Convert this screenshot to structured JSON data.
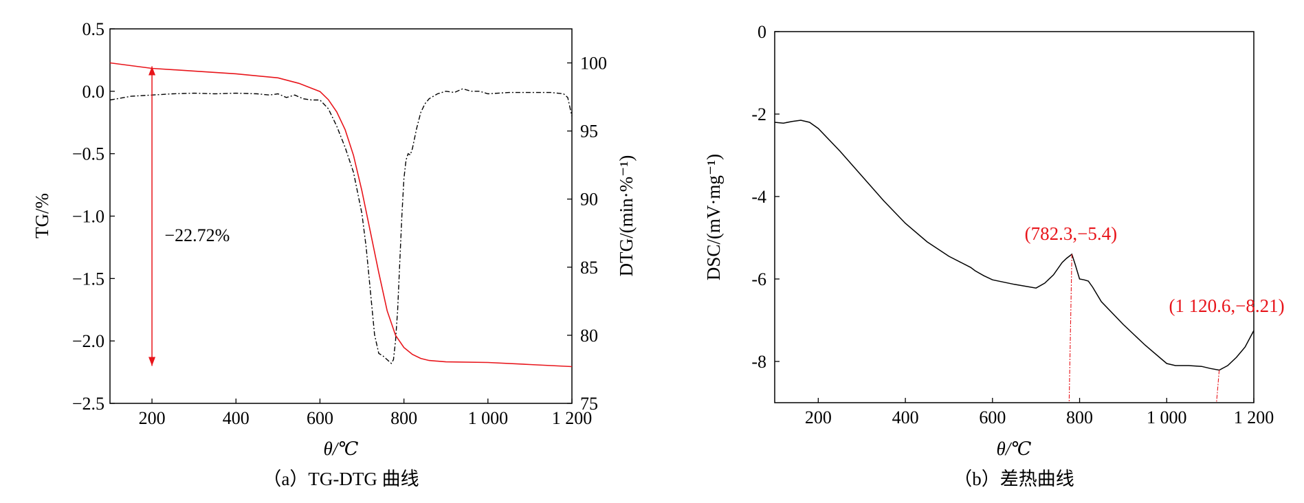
{
  "chart_data": [
    {
      "type": "line",
      "caption": "（a）TG-DTG 曲线",
      "xlabel": "θ/℃",
      "ylabel": "TG/%",
      "y2label": "DTG/(min·%⁻¹)",
      "xlim": [
        100,
        1200
      ],
      "ylim": [
        -2.5,
        0.5
      ],
      "y2lim": [
        75,
        102.5
      ],
      "xticks": [
        200,
        400,
        600,
        800,
        1000,
        1200
      ],
      "xtick_labels": [
        "200",
        "400",
        "600",
        "800",
        "1 000",
        "1 200"
      ],
      "yticks": [
        0.5,
        0.0,
        -0.5,
        -1.0,
        -1.5,
        -2.0,
        -2.5
      ],
      "ytick_labels": [
        "0.5",
        "0.0",
        "−0.5",
        "−1.0",
        "−1.5",
        "−2.0",
        "−2.5"
      ],
      "y2ticks": [
        75,
        80,
        85,
        90,
        95,
        100
      ],
      "y2tick_labels": [
        "75",
        "80",
        "85",
        "90",
        "95",
        "100"
      ],
      "annotation": {
        "text": "−22.72%",
        "arrow_x": 200,
        "arrow_y_top": 0.2,
        "arrow_y_bottom": -2.2,
        "text_x": 230,
        "text_y": -1.15,
        "color": "#e8141a"
      },
      "series": [
        {
          "role": "DTG",
          "axis": "y",
          "color": "#000000",
          "dash": "dashdot",
          "x": [
            100,
            150,
            200,
            250,
            300,
            350,
            400,
            450,
            480,
            500,
            520,
            540,
            560,
            580,
            600,
            620,
            640,
            660,
            680,
            700,
            710,
            720,
            730,
            740,
            750,
            760,
            770,
            775,
            780,
            785,
            790,
            795,
            800,
            805,
            810,
            815,
            820,
            830,
            840,
            850,
            860,
            880,
            900,
            920,
            940,
            960,
            980,
            1000,
            1050,
            1100,
            1150,
            1180,
            1190,
            1200
          ],
          "y": [
            -0.07,
            -0.04,
            -0.03,
            -0.02,
            -0.015,
            -0.02,
            -0.015,
            -0.02,
            -0.03,
            -0.02,
            -0.05,
            -0.03,
            -0.06,
            -0.07,
            -0.07,
            -0.14,
            -0.28,
            -0.45,
            -0.65,
            -0.98,
            -1.25,
            -1.6,
            -1.95,
            -2.1,
            -2.12,
            -2.15,
            -2.18,
            -2.15,
            -2.0,
            -1.75,
            -1.38,
            -1.0,
            -0.7,
            -0.55,
            -0.5,
            -0.51,
            -0.46,
            -0.3,
            -0.17,
            -0.1,
            -0.06,
            -0.02,
            0.0,
            -0.01,
            0.02,
            0.0,
            0.0,
            -0.02,
            -0.01,
            -0.01,
            -0.01,
            -0.02,
            -0.05,
            -0.2
          ]
        },
        {
          "role": "TG",
          "axis": "y2",
          "color": "#e8141a",
          "dash": "solid",
          "x": [
            100,
            200,
            300,
            400,
            500,
            550,
            600,
            620,
            640,
            660,
            680,
            700,
            720,
            740,
            760,
            780,
            800,
            820,
            840,
            860,
            900,
            1000,
            1100,
            1200
          ],
          "y2": [
            100.0,
            99.6,
            99.4,
            99.2,
            98.9,
            98.5,
            97.9,
            97.3,
            96.4,
            95.1,
            93.2,
            90.6,
            87.6,
            84.6,
            81.8,
            80.0,
            79.1,
            78.6,
            78.3,
            78.15,
            78.05,
            78.0,
            77.85,
            77.7
          ]
        }
      ]
    },
    {
      "type": "line",
      "caption": "（b）差热曲线",
      "xlabel": "θ/℃",
      "ylabel": "DSC/(mV·mg⁻¹)",
      "xlim": [
        100,
        1200
      ],
      "ylim": [
        -9,
        0
      ],
      "xticks": [
        200,
        400,
        600,
        800,
        1000,
        1200
      ],
      "xtick_labels": [
        "200",
        "400",
        "600",
        "800",
        "1 000",
        "1 200"
      ],
      "yticks": [
        0,
        -2,
        -4,
        -6,
        -8
      ],
      "ytick_labels": [
        "0",
        "-2",
        "-4",
        "-6",
        "-8"
      ],
      "annotations": [
        {
          "text": "(782.3,−5.4)",
          "x": 782.3,
          "y": -5.4,
          "label_x": 780,
          "label_y": -4.9,
          "color": "#e8141a"
        },
        {
          "text": "(1 120.6,−8.21)",
          "x": 1120.6,
          "y": -8.21,
          "label_x": 1005,
          "label_y": -6.65,
          "color": "#e8141a"
        }
      ],
      "series": [
        {
          "role": "DSC",
          "color": "#000000",
          "x": [
            100,
            120,
            140,
            160,
            180,
            200,
            250,
            300,
            350,
            400,
            450,
            500,
            550,
            560,
            580,
            600,
            650,
            700,
            720,
            740,
            760,
            770,
            782.3,
            790,
            800,
            810,
            820,
            830,
            850,
            900,
            950,
            1000,
            1020,
            1050,
            1080,
            1100,
            1120.6,
            1140,
            1160,
            1180,
            1200
          ],
          "y": [
            -2.2,
            -2.22,
            -2.18,
            -2.15,
            -2.2,
            -2.35,
            -2.9,
            -3.5,
            -4.1,
            -4.65,
            -5.1,
            -5.45,
            -5.72,
            -5.8,
            -5.92,
            -6.02,
            -6.13,
            -6.22,
            -6.1,
            -5.9,
            -5.6,
            -5.5,
            -5.4,
            -5.65,
            -6.0,
            -6.02,
            -6.05,
            -6.2,
            -6.55,
            -7.1,
            -7.6,
            -8.05,
            -8.1,
            -8.1,
            -8.12,
            -8.17,
            -8.21,
            -8.1,
            -7.9,
            -7.65,
            -7.25
          ]
        }
      ]
    }
  ]
}
